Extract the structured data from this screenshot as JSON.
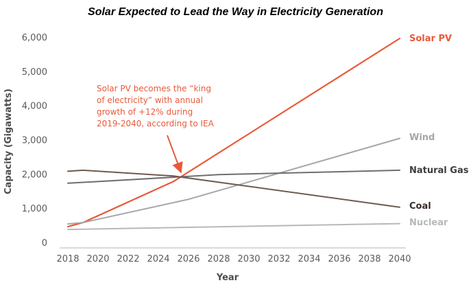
{
  "chart_data": {
    "type": "line",
    "title": "Solar Expected to Lead the Way in Electricity Generation",
    "xlabel": "Year",
    "ylabel": "Capacity (Gigawatts)",
    "xlim": [
      2018,
      2040
    ],
    "ylim": [
      0,
      6000
    ],
    "x_ticks": [
      2018,
      2020,
      2022,
      2024,
      2026,
      2028,
      2030,
      2032,
      2034,
      2036,
      2038,
      2040
    ],
    "y_ticks": [
      0,
      1000,
      2000,
      3000,
      4000,
      5000,
      6000
    ],
    "x_tick_labels": [
      "2018",
      "2020",
      "2022",
      "2024",
      "2026",
      "2028",
      "2030",
      "2032",
      "2034",
      "2036",
      "2038",
      "2040"
    ],
    "y_tick_labels": [
      "0",
      "1,000",
      "2,000",
      "3,000",
      "4,000",
      "5,000",
      "6,000"
    ],
    "grid": false,
    "legend": "series labels at right end of lines",
    "series": [
      {
        "name": "Solar PV",
        "color": "#e8593a",
        "x": [
          2018,
          2019,
          2025,
          2040
        ],
        "y": [
          480,
          600,
          1800,
          5980
        ]
      },
      {
        "name": "Wind",
        "color": "#a6a6a6",
        "x": [
          2018,
          2019,
          2026,
          2040
        ],
        "y": [
          560,
          600,
          1280,
          3060
        ]
      },
      {
        "name": "Natural Gas",
        "color": "#6e6e6e",
        "x": [
          2018,
          2028,
          2040
        ],
        "y": [
          1750,
          2000,
          2130
        ]
      },
      {
        "name": "Coal",
        "color": "#6e5a50",
        "x": [
          2018,
          2019,
          2025,
          2040
        ],
        "y": [
          2100,
          2130,
          1960,
          1050
        ]
      },
      {
        "name": "Nuclear",
        "color": "#b8b8b8",
        "x": [
          2018,
          2040
        ],
        "y": [
          400,
          570
        ]
      }
    ],
    "annotation": {
      "lines": [
        "Solar PV becomes the “king",
        "of electricity” with annual",
        "growth of +12% during",
        "2019-2040, according to IEA"
      ],
      "color": "#e8593a",
      "arrow_to": {
        "x": 2025.6,
        "y": 1950
      }
    }
  }
}
